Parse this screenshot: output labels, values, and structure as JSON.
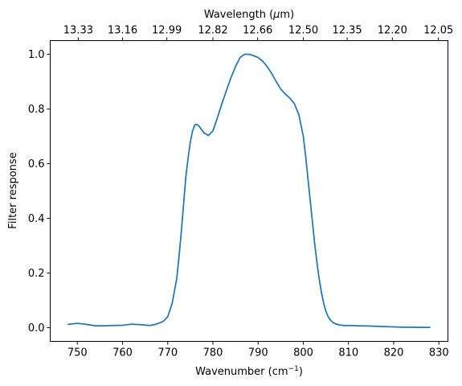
{
  "chart_data": {
    "type": "line",
    "xlabel": "Wavenumber (cm",
    "xlabel_sup": "−1",
    "xlabel_end": ")",
    "ylabel": "Filter response",
    "top_xlabel": "Wavelength (",
    "top_xlabel_mu": "μ",
    "top_xlabel_end": "m)",
    "xlim": [
      744.0,
      832.0
    ],
    "ylim": [
      -0.05,
      1.05
    ],
    "xticks": [
      750,
      760,
      770,
      780,
      790,
      800,
      810,
      820,
      830
    ],
    "xtick_labels": [
      "750",
      "760",
      "770",
      "780",
      "790",
      "800",
      "810",
      "820",
      "830"
    ],
    "yticks": [
      0.0,
      0.2,
      0.4,
      0.6,
      0.8,
      1.0
    ],
    "ytick_labels": [
      "0.0",
      "0.2",
      "0.4",
      "0.6",
      "0.8",
      "1.0"
    ],
    "top_xticks": [
      {
        "wavenumber": 750.2,
        "label": "13.33"
      },
      {
        "wavenumber": 760.0,
        "label": "13.16"
      },
      {
        "wavenumber": 769.8,
        "label": "12.99"
      },
      {
        "wavenumber": 780.0,
        "label": "12.82"
      },
      {
        "wavenumber": 789.9,
        "label": "12.66"
      },
      {
        "wavenumber": 800.0,
        "label": "12.50"
      },
      {
        "wavenumber": 809.7,
        "label": "12.35"
      },
      {
        "wavenumber": 819.7,
        "label": "12.20"
      },
      {
        "wavenumber": 829.9,
        "label": "12.05"
      }
    ],
    "grid": false,
    "series": [
      {
        "color": "#1f77b4",
        "x": [
          748.0,
          750.0,
          752.0,
          754.0,
          756.0,
          758.0,
          760.0,
          762.0,
          764.0,
          766.0,
          767.0,
          768.0,
          769.0,
          770.0,
          771.0,
          772.0,
          772.5,
          773.0,
          773.5,
          774.0,
          774.5,
          775.0,
          775.5,
          776.0,
          776.5,
          777.0,
          777.5,
          778.0,
          779.0,
          780.0,
          781.0,
          782.0,
          783.0,
          784.0,
          785.0,
          786.0,
          787.0,
          788.0,
          789.0,
          790.0,
          791.0,
          792.0,
          793.0,
          794.0,
          795.0,
          796.0,
          797.0,
          798.0,
          799.0,
          800.0,
          800.5,
          801.0,
          801.5,
          802.0,
          802.5,
          803.0,
          803.5,
          804.0,
          804.5,
          805.0,
          805.5,
          806.0,
          806.5,
          807.0,
          808.0,
          809.0,
          810.0,
          812.0,
          815.0,
          818.0,
          822.0,
          826.0,
          828.0
        ],
        "y": [
          0.012,
          0.016,
          0.012,
          0.007,
          0.007,
          0.008,
          0.009,
          0.013,
          0.011,
          0.008,
          0.011,
          0.016,
          0.023,
          0.04,
          0.09,
          0.18,
          0.26,
          0.35,
          0.45,
          0.55,
          0.62,
          0.68,
          0.72,
          0.742,
          0.743,
          0.736,
          0.724,
          0.713,
          0.703,
          0.72,
          0.768,
          0.82,
          0.868,
          0.915,
          0.955,
          0.988,
          1.0,
          1.0,
          0.995,
          0.988,
          0.975,
          0.955,
          0.93,
          0.9,
          0.873,
          0.855,
          0.84,
          0.82,
          0.78,
          0.7,
          0.63,
          0.55,
          0.47,
          0.39,
          0.31,
          0.24,
          0.18,
          0.13,
          0.09,
          0.06,
          0.04,
          0.028,
          0.02,
          0.015,
          0.01,
          0.008,
          0.008,
          0.007,
          0.006,
          0.004,
          0.002,
          0.001,
          0.001
        ]
      }
    ]
  }
}
